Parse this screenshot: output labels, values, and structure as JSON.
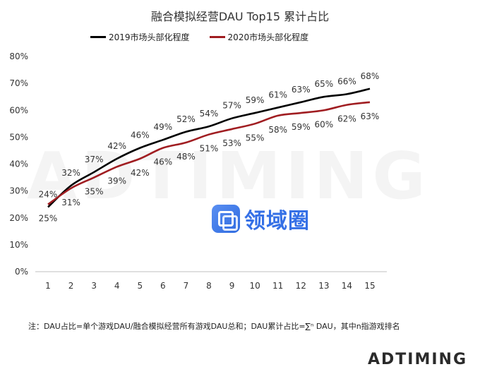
{
  "watermark": {
    "logo_text": "领域圈",
    "background_wordmark": "ADTIMING"
  },
  "note": "注：DAU占比=单个游戏DAU/融合模拟经营所有游戏DAU总和；DAU累计占比=∑ⁿ DAU，其中n指游戏排名",
  "brand": {
    "name": "ADTIMING",
    "accent_color": "#c0392b"
  },
  "chart_data": {
    "type": "line",
    "title": "融合模拟经营DAU Top15 累计占比",
    "xlabel": "",
    "ylabel": "",
    "x": [
      1,
      2,
      3,
      4,
      5,
      6,
      7,
      8,
      9,
      10,
      11,
      12,
      13,
      14,
      15
    ],
    "ylim": [
      0,
      80
    ],
    "yticks": [
      "0%",
      "10%",
      "20%",
      "30%",
      "40%",
      "50%",
      "60%",
      "70%",
      "80%"
    ],
    "grid": false,
    "legend_position": "top",
    "series": [
      {
        "name": "2019市场头部化程度",
        "color": "#000000",
        "values": [
          24,
          32,
          37,
          42,
          46,
          49,
          52,
          54,
          57,
          59,
          61,
          63,
          65,
          66,
          68
        ],
        "labels": [
          "24%",
          "32%",
          "37%",
          "42%",
          "46%",
          "49%",
          "52%",
          "54%",
          "57%",
          "59%",
          "61%",
          "63%",
          "65%",
          "66%",
          "68%"
        ],
        "label_position": "above"
      },
      {
        "name": "2020市场头部化程度",
        "color": "#a01d21",
        "values": [
          25,
          31,
          35,
          39,
          42,
          46,
          48,
          51,
          53,
          55,
          58,
          59,
          60,
          62,
          63
        ],
        "labels": [
          "25%",
          "31%",
          "35%",
          "39%",
          "42%",
          "46%",
          "48%",
          "51%",
          "53%",
          "55%",
          "58%",
          "59%",
          "60%",
          "62%",
          "63%"
        ],
        "label_position": "below"
      }
    ]
  }
}
